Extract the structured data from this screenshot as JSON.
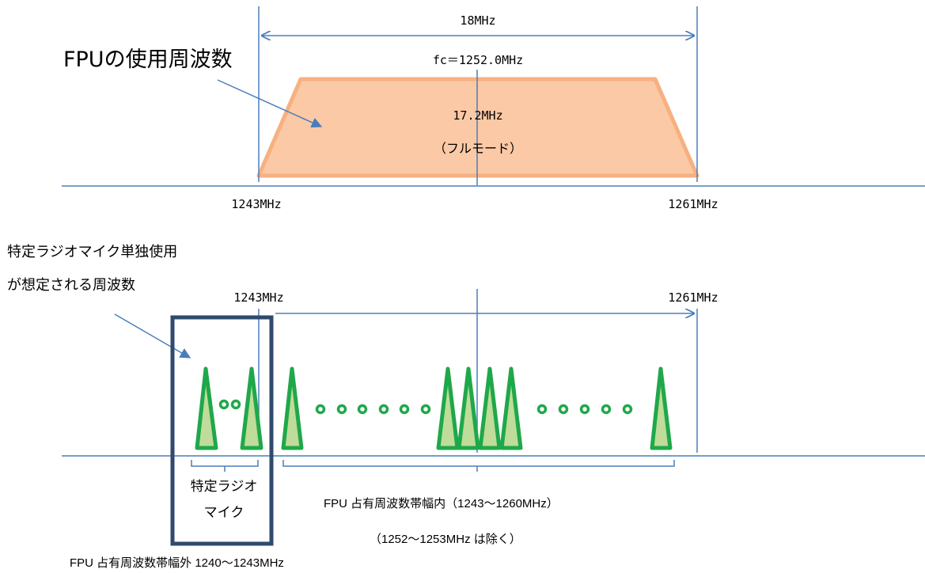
{
  "top": {
    "title": "FPUの使用周波数",
    "bandwidth": "18MHz",
    "center": "fc＝1252.0MHz",
    "occupied": "17.2MHz",
    "mode": "（フルモード）",
    "left_freq": "1243MHz",
    "right_freq": "1261MHz"
  },
  "bottom": {
    "note_line1": "特定ラジオマイク単独使用",
    "note_line2": "が想定される周波数",
    "left_freq": "1243MHz",
    "right_freq": "1261MHz",
    "mic_box_line1": "特定ラジオ",
    "mic_box_line2": "マイク",
    "inside_band": "FPU 占有周波数帯幅内（1243～1260MHz）",
    "excluded": "（1252～1253MHz は除く）",
    "outside_band": "FPU 占有周波数帯幅外 1240～1243MHz"
  },
  "colors": {
    "axis": "#4a7ebb",
    "trapezoid_fill": "#fbc9a5",
    "trapezoid_stroke": "#f7b080",
    "mic_stroke": "#1fa84a",
    "mic_fill": "#bfdc9a",
    "box_stroke": "#2f4a6e"
  }
}
